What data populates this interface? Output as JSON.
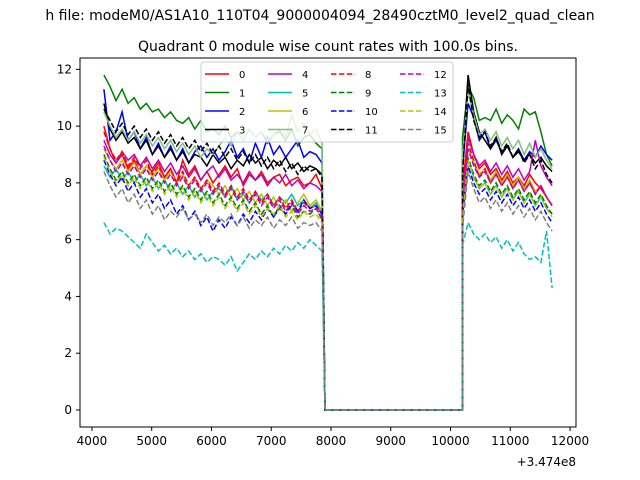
{
  "suptitle": "h file: modeM0/AS1A10_110T04_9000004094_28490cztM0_level2_quad_clean",
  "title": "Quadrant 0 module wise count rates with 100.0s bins.",
  "offset_label": "+3.474e8",
  "chart_data": {
    "type": "line",
    "title": "Quadrant 0 module wise count rates with 100.0s bins.",
    "xlabel": "",
    "ylabel": "",
    "x_offset": "+3.474e8",
    "xlim": [
      3800,
      12100
    ],
    "ylim": [
      -0.6,
      12.4
    ],
    "x_ticks": [
      4000,
      5000,
      6000,
      7000,
      8000,
      9000,
      10000,
      11000,
      12000
    ],
    "x_tick_labels": [
      "4000",
      "5000",
      "6000",
      "7000",
      "8000",
      "9000",
      "10000",
      "11000",
      "12000"
    ],
    "y_ticks": [
      0,
      2,
      4,
      6,
      8,
      10,
      12
    ],
    "y_tick_labels": [
      "0",
      "2",
      "4",
      "6",
      "8",
      "10",
      "12"
    ],
    "grid": false,
    "legend_position": "top-center",
    "series": [
      {
        "name": "0",
        "color": "#ff0000",
        "style": "solid",
        "seg1": [
          10.0,
          9.2,
          8.7,
          9.0,
          8.5,
          8.8,
          8.3,
          8.6,
          8.4,
          8.7,
          8.2,
          8.5,
          8.0,
          8.8,
          8.3,
          8.6,
          8.1,
          8.4,
          8.0,
          8.3,
          8.6,
          8.2,
          8.5,
          7.9,
          8.3,
          8.1,
          8.4,
          8.0,
          8.2,
          8.3,
          7.9,
          8.1,
          8.2,
          7.9,
          8.0,
          8.3,
          7.8
        ],
        "seg2": [
          7.8,
          9.8,
          9.0,
          8.5,
          8.7,
          8.3,
          8.5,
          8.1,
          8.4,
          8.0,
          8.2,
          7.9,
          8.3,
          8.0,
          7.8,
          7.5,
          7.2
        ]
      },
      {
        "name": "1",
        "color": "#008000",
        "style": "solid",
        "seg1": [
          11.8,
          11.4,
          10.9,
          11.3,
          10.8,
          11.0,
          10.6,
          10.8,
          10.5,
          10.6,
          10.3,
          10.5,
          10.2,
          10.1,
          10.3,
          9.9,
          10.2,
          9.8,
          9.9,
          9.7,
          10.0,
          9.6,
          9.8,
          9.5,
          9.9,
          9.6,
          9.8,
          9.4,
          9.7,
          9.8,
          9.5,
          9.9,
          9.3,
          9.6,
          9.7,
          9.4,
          9.2
        ],
        "seg2": [
          9.6,
          11.4,
          11.0,
          10.2,
          10.3,
          10.2,
          10.6,
          10.1,
          10.4,
          10.2,
          9.9,
          10.6,
          10.4,
          10.5,
          9.8,
          9.0,
          8.6
        ]
      },
      {
        "name": "2",
        "color": "#0000ff",
        "style": "solid",
        "seg1": [
          11.3,
          9.5,
          9.8,
          10.5,
          9.5,
          9.8,
          9.2,
          9.6,
          9.0,
          9.4,
          8.9,
          9.3,
          8.8,
          9.2,
          8.7,
          9.1,
          9.3,
          8.9,
          9.2,
          8.8,
          9.1,
          9.5,
          8.9,
          9.2,
          8.7,
          9.4,
          8.9,
          9.6,
          9.0,
          9.3,
          8.9,
          9.2,
          9.5,
          8.9,
          9.1,
          9.0,
          8.7
        ],
        "seg2": [
          8.5,
          10.8,
          10.3,
          9.5,
          9.8,
          9.2,
          9.5,
          9.1,
          9.3,
          8.9,
          9.2,
          8.8,
          9.1,
          8.9,
          9.3,
          9.0,
          8.8
        ]
      },
      {
        "name": "3",
        "color": "#000000",
        "style": "solid",
        "seg1": [
          10.8,
          9.9,
          9.5,
          9.8,
          9.4,
          9.6,
          9.2,
          9.5,
          9.0,
          9.3,
          8.9,
          9.2,
          8.8,
          9.1,
          8.7,
          9.0,
          8.9,
          8.6,
          9.0,
          8.7,
          8.9,
          8.5,
          8.8,
          8.6,
          9.0,
          8.7,
          8.9,
          8.5,
          8.8,
          8.6,
          8.9,
          8.5,
          8.7,
          8.4,
          8.6,
          8.5,
          8.3
        ],
        "seg2": [
          8.8,
          11.8,
          10.5,
          9.8,
          9.5,
          9.2,
          9.6,
          9.0,
          9.3,
          8.9,
          9.1,
          8.8,
          9.0,
          8.7,
          8.9,
          8.6,
          8.4
        ]
      },
      {
        "name": "4",
        "color": "#bf00bf",
        "style": "solid",
        "seg1": [
          9.5,
          9.0,
          8.7,
          9.1,
          8.8,
          9.0,
          8.6,
          8.9,
          8.5,
          8.8,
          8.4,
          8.7,
          8.3,
          8.6,
          8.2,
          8.5,
          8.1,
          8.4,
          8.6,
          8.2,
          8.5,
          8.1,
          8.3,
          8.0,
          8.4,
          8.1,
          8.3,
          7.9,
          8.2,
          8.0,
          8.3,
          7.9,
          8.1,
          7.8,
          8.0,
          7.9,
          7.7
        ],
        "seg2": [
          7.5,
          9.6,
          9.0,
          8.6,
          8.8,
          8.4,
          8.7,
          8.3,
          8.6,
          8.2,
          8.5,
          8.1,
          8.4,
          9.5,
          8.6,
          8.2,
          7.9
        ]
      },
      {
        "name": "5",
        "color": "#00bfbf",
        "style": "solid",
        "seg1": [
          8.6,
          8.2,
          8.5,
          8.1,
          8.4,
          8.0,
          8.3,
          7.9,
          8.2,
          7.8,
          8.1,
          7.7,
          8.0,
          7.6,
          7.9,
          7.5,
          7.8,
          7.4,
          7.7,
          7.8,
          7.5,
          7.9,
          7.4,
          7.6,
          7.3,
          7.7,
          7.4,
          7.6,
          7.2,
          7.5,
          7.3,
          7.6,
          7.2,
          7.4,
          7.1,
          7.3,
          7.0
        ],
        "seg2": [
          6.8,
          8.8,
          8.2,
          7.8,
          8.0,
          7.6,
          7.9,
          7.5,
          7.8,
          7.4,
          7.7,
          7.3,
          7.6,
          7.2,
          7.5,
          7.1,
          6.9
        ]
      },
      {
        "name": "6",
        "color": "#bfbf00",
        "style": "solid",
        "seg1": [
          9.2,
          8.8,
          8.5,
          8.8,
          8.4,
          8.7,
          8.3,
          8.6,
          8.2,
          8.5,
          8.1,
          8.4,
          8.0,
          8.3,
          7.9,
          8.2,
          7.8,
          8.1,
          7.9,
          7.6,
          7.9,
          7.5,
          7.8,
          7.4,
          7.7,
          7.3,
          7.6,
          7.2,
          7.5,
          7.1,
          7.4,
          7.0,
          7.3,
          7.6,
          7.2,
          7.4,
          7.0
        ],
        "seg2": [
          7.2,
          9.2,
          8.7,
          8.3,
          8.5,
          8.1,
          8.4,
          8.0,
          8.3,
          7.9,
          8.2,
          7.8,
          8.1,
          7.7,
          7.9,
          7.5,
          7.2
        ]
      },
      {
        "name": "7",
        "color": "#7fbf7f",
        "style": "solid",
        "seg1": [
          10.5,
          10.0,
          9.6,
          9.9,
          9.5,
          9.8,
          9.4,
          9.7,
          9.3,
          9.6,
          9.2,
          9.5,
          9.1,
          9.4,
          9.0,
          9.3,
          8.9,
          9.2,
          9.0,
          9.3,
          9.6,
          9.3,
          9.8,
          9.5,
          9.9,
          9.6,
          9.8,
          9.5,
          9.7,
          9.9,
          9.6,
          10.4,
          9.8,
          10.1,
          9.7,
          9.9,
          9.4
        ],
        "seg2": [
          9.0,
          11.2,
          10.4,
          9.7,
          9.9,
          9.5,
          9.8,
          9.3,
          9.6,
          9.2,
          9.5,
          9.0,
          9.4,
          8.9,
          9.2,
          8.8,
          8.5
        ]
      },
      {
        "name": "8",
        "color": "#ff0000",
        "style": "dashed",
        "seg1": [
          9.8,
          9.2,
          8.8,
          9.1,
          8.6,
          8.9,
          8.5,
          8.8,
          8.3,
          8.6,
          8.2,
          8.5,
          8.0,
          8.4,
          7.9,
          8.2,
          7.8,
          8.1,
          7.7,
          8.0,
          7.6,
          7.9,
          7.5,
          7.8,
          7.4,
          7.7,
          7.3,
          7.6,
          7.2,
          7.5,
          7.1,
          7.4,
          7.0,
          7.3,
          7.1,
          7.2,
          6.9
        ],
        "seg2": [
          7.0,
          9.4,
          8.8,
          8.2,
          8.5,
          8.0,
          8.3,
          7.9,
          8.2,
          7.8,
          8.1,
          7.7,
          8.0,
          7.6,
          7.9,
          7.5,
          7.2
        ]
      },
      {
        "name": "9",
        "color": "#008000",
        "style": "dashed",
        "seg1": [
          9.0,
          8.5,
          8.1,
          8.4,
          8.0,
          8.3,
          7.9,
          8.2,
          7.8,
          8.1,
          7.7,
          8.0,
          7.6,
          7.9,
          7.5,
          7.8,
          7.4,
          7.7,
          7.3,
          7.6,
          7.2,
          7.5,
          7.1,
          7.4,
          7.0,
          7.3,
          6.9,
          7.2,
          6.8,
          7.1,
          6.9,
          7.2,
          6.8,
          7.0,
          6.9,
          7.1,
          6.7
        ],
        "seg2": [
          6.8,
          8.9,
          8.3,
          7.9,
          8.1,
          7.7,
          8.0,
          7.6,
          7.9,
          7.5,
          7.8,
          7.4,
          7.7,
          7.3,
          7.6,
          7.2,
          6.9
        ]
      },
      {
        "name": "10",
        "color": "#0000ff",
        "style": "dashed",
        "seg1": [
          8.8,
          8.3,
          7.9,
          8.2,
          7.7,
          8.0,
          7.5,
          7.8,
          7.3,
          7.6,
          7.1,
          7.4,
          6.9,
          7.2,
          6.7,
          7.0,
          6.5,
          6.8,
          6.3,
          6.7,
          6.4,
          6.8,
          6.5,
          6.9,
          6.6,
          7.0,
          6.7,
          7.1,
          6.8,
          7.2,
          6.9,
          7.3,
          7.0,
          7.4,
          7.1,
          7.2,
          6.9
        ],
        "seg2": [
          6.9,
          8.6,
          8.0,
          7.6,
          7.8,
          7.4,
          7.7,
          7.3,
          7.6,
          7.2,
          7.5,
          7.1,
          7.4,
          7.0,
          7.3,
          6.9,
          6.6
        ]
      },
      {
        "name": "11",
        "color": "#000000",
        "style": "dashed",
        "seg1": [
          10.6,
          10.2,
          9.8,
          10.1,
          9.7,
          10.0,
          9.6,
          9.9,
          9.5,
          9.8,
          9.4,
          9.7,
          9.3,
          9.6,
          9.2,
          9.5,
          9.1,
          9.4,
          9.0,
          9.3,
          8.9,
          9.2,
          8.8,
          9.1,
          8.7,
          9.0,
          8.6,
          8.9,
          8.5,
          8.8,
          8.4,
          8.7,
          8.3,
          8.6,
          8.4,
          8.5,
          8.2
        ],
        "seg2": [
          8.3,
          11.5,
          10.2,
          9.6,
          9.8,
          9.3,
          9.6,
          9.1,
          9.4,
          8.9,
          9.2,
          8.7,
          9.0,
          8.5,
          8.8,
          8.3,
          8.0
        ]
      },
      {
        "name": "12",
        "color": "#bf00bf",
        "style": "dashed",
        "seg1": [
          9.3,
          8.8,
          8.4,
          8.7,
          8.3,
          8.6,
          8.2,
          8.5,
          8.1,
          8.4,
          8.0,
          8.3,
          7.9,
          8.2,
          7.8,
          8.1,
          7.7,
          8.0,
          7.6,
          7.9,
          7.5,
          7.8,
          7.4,
          7.7,
          7.3,
          7.6,
          7.2,
          7.5,
          7.1,
          7.4,
          7.0,
          7.3,
          6.9,
          7.2,
          7.0,
          7.1,
          6.8
        ],
        "seg2": [
          6.9,
          9.2,
          8.6,
          8.2,
          8.4,
          8.0,
          8.3,
          7.9,
          8.2,
          7.8,
          8.1,
          7.7,
          8.0,
          7.6,
          7.9,
          7.5,
          7.2
        ]
      },
      {
        "name": "13",
        "color": "#00bfbf",
        "style": "dashed",
        "seg1": [
          6.6,
          6.2,
          6.4,
          6.3,
          6.1,
          5.9,
          5.7,
          6.2,
          5.9,
          5.6,
          5.8,
          5.5,
          5.7,
          5.4,
          5.6,
          5.3,
          5.5,
          5.2,
          5.4,
          5.3,
          5.1,
          5.4,
          4.9,
          5.2,
          5.5,
          5.3,
          5.6,
          5.4,
          5.7,
          5.5,
          5.8,
          5.6,
          5.9,
          5.7,
          6.0,
          5.8,
          5.6
        ],
        "seg2": [
          5.8,
          6.6,
          6.2,
          6.0,
          6.2,
          5.9,
          6.1,
          5.7,
          6.0,
          5.6,
          5.9,
          5.5,
          5.3,
          5.4,
          5.2,
          6.3,
          4.3
        ]
      },
      {
        "name": "14",
        "color": "#bfbf00",
        "style": "dashed",
        "seg1": [
          8.9,
          8.4,
          8.0,
          8.3,
          7.9,
          8.2,
          7.8,
          8.1,
          7.7,
          8.0,
          7.6,
          7.9,
          7.5,
          7.8,
          7.4,
          7.7,
          7.3,
          7.6,
          7.2,
          7.5,
          7.1,
          7.4,
          7.0,
          7.3,
          6.9,
          7.2,
          6.8,
          7.1,
          6.9,
          7.2,
          6.8,
          7.0,
          6.7,
          7.0,
          6.8,
          6.9,
          6.6
        ],
        "seg2": [
          6.7,
          8.8,
          8.2,
          7.8,
          8.0,
          7.6,
          7.9,
          7.5,
          7.8,
          7.4,
          7.7,
          7.3,
          7.6,
          7.2,
          7.5,
          7.1,
          6.8
        ]
      },
      {
        "name": "15",
        "color": "#7f7f7f",
        "style": "dashed",
        "seg1": [
          8.4,
          7.9,
          7.5,
          7.8,
          7.3,
          7.6,
          7.1,
          7.4,
          6.9,
          7.2,
          6.7,
          7.0,
          6.8,
          7.1,
          6.7,
          6.9,
          6.6,
          6.9,
          6.5,
          6.8,
          6.6,
          6.9,
          6.5,
          6.8,
          6.4,
          6.7,
          6.5,
          6.8,
          6.4,
          6.7,
          6.5,
          6.8,
          6.4,
          6.6,
          6.5,
          6.6,
          6.3
        ],
        "seg2": [
          6.4,
          8.4,
          7.8,
          7.3,
          7.5,
          7.1,
          7.4,
          7.0,
          7.3,
          6.9,
          7.2,
          6.8,
          7.1,
          6.7,
          7.0,
          6.6,
          6.3
        ]
      }
    ],
    "gap": {
      "x_start": 7900,
      "x_end": 10200,
      "value": 0
    },
    "seg1_x_range": [
      4200,
      7850
    ],
    "seg2_x_range": [
      10200,
      11700
    ]
  }
}
